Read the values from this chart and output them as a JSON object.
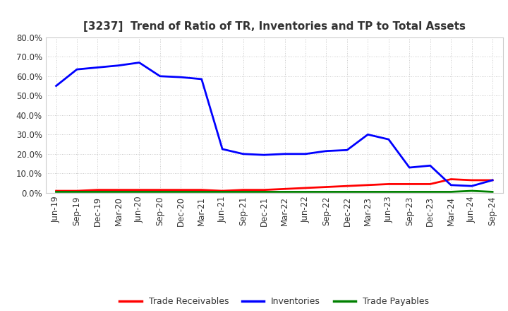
{
  "title": "[3237]  Trend of Ratio of TR, Inventories and TP to Total Assets",
  "x_labels": [
    "Jun-19",
    "Sep-19",
    "Dec-19",
    "Mar-20",
    "Jun-20",
    "Sep-20",
    "Dec-20",
    "Mar-21",
    "Jun-21",
    "Sep-21",
    "Dec-21",
    "Mar-22",
    "Jun-22",
    "Sep-22",
    "Dec-22",
    "Mar-23",
    "Jun-23",
    "Sep-23",
    "Dec-23",
    "Mar-24",
    "Jun-24",
    "Sep-24"
  ],
  "trade_receivables": [
    0.01,
    0.01,
    0.015,
    0.015,
    0.015,
    0.015,
    0.015,
    0.015,
    0.01,
    0.015,
    0.015,
    0.02,
    0.025,
    0.03,
    0.035,
    0.04,
    0.045,
    0.045,
    0.045,
    0.07,
    0.065,
    0.065
  ],
  "inventories": [
    0.55,
    0.635,
    0.645,
    0.655,
    0.67,
    0.6,
    0.595,
    0.585,
    0.225,
    0.2,
    0.195,
    0.2,
    0.2,
    0.215,
    0.22,
    0.3,
    0.275,
    0.13,
    0.14,
    0.04,
    0.035,
    0.065
  ],
  "trade_payables": [
    0.005,
    0.005,
    0.005,
    0.005,
    0.005,
    0.005,
    0.005,
    0.005,
    0.005,
    0.005,
    0.005,
    0.005,
    0.005,
    0.005,
    0.005,
    0.005,
    0.005,
    0.005,
    0.005,
    0.005,
    0.01,
    0.005
  ],
  "ylim": [
    0.0,
    0.8
  ],
  "yticks": [
    0.0,
    0.1,
    0.2,
    0.3,
    0.4,
    0.5,
    0.6,
    0.7,
    0.8
  ],
  "line_colors": {
    "trade_receivables": "#FF0000",
    "inventories": "#0000FF",
    "trade_payables": "#008000"
  },
  "line_width": 2.0,
  "background_color": "#FFFFFF",
  "grid_color": "#AAAAAA",
  "legend_labels": [
    "Trade Receivables",
    "Inventories",
    "Trade Payables"
  ],
  "title_fontsize": 11,
  "tick_fontsize": 8.5,
  "legend_fontsize": 9
}
